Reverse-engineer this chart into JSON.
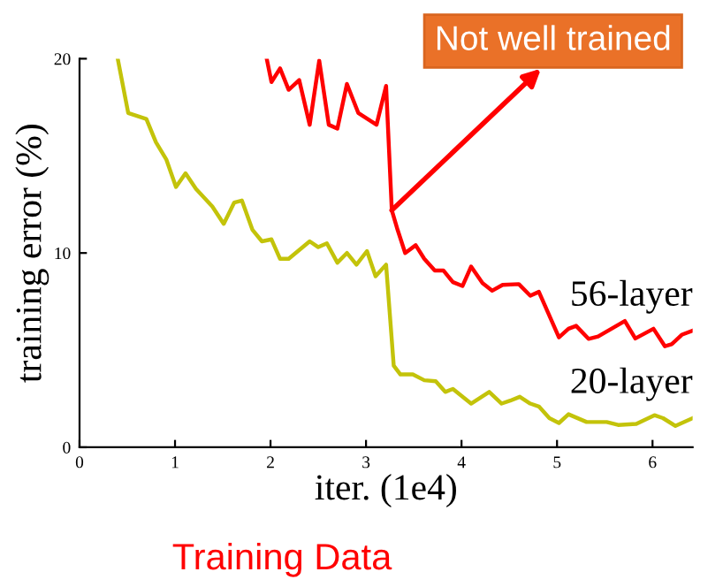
{
  "chart_data": {
    "type": "line",
    "title": "Training Data",
    "xlabel": "iter. (1e4)",
    "ylabel": "training error (%)",
    "xlim": [
      0,
      6.42
    ],
    "ylim": [
      0,
      20
    ],
    "xticks": [
      0,
      1,
      2,
      3,
      4,
      5,
      6
    ],
    "yticks": [
      0,
      10,
      20
    ],
    "grid": false,
    "legend": false,
    "annotations": [
      {
        "text": "Not well trained",
        "x": 3.27,
        "y": 12.2
      }
    ],
    "series": [
      {
        "name": "56-layer",
        "color": "#ff0000",
        "x": [
          1.96,
          2.01,
          2.1,
          2.19,
          2.3,
          2.41,
          2.51,
          2.61,
          2.7,
          2.8,
          2.92,
          3.11,
          3.21,
          3.27,
          3.33,
          3.41,
          3.52,
          3.61,
          3.72,
          3.81,
          3.91,
          4.01,
          4.1,
          4.22,
          4.32,
          4.43,
          4.6,
          4.72,
          4.81,
          5.02,
          5.12,
          5.2,
          5.33,
          5.43,
          5.71,
          5.82,
          6.01,
          6.13,
          6.2,
          6.31,
          6.42
        ],
        "values": [
          20,
          18.8,
          19.5,
          18.4,
          18.9,
          16.6,
          19.9,
          16.6,
          16.4,
          18.7,
          17.2,
          16.6,
          18.6,
          12.2,
          11.2,
          10.0,
          10.4,
          9.7,
          9.1,
          9.1,
          8.5,
          8.3,
          9.3,
          8.45,
          8.06,
          8.36,
          8.4,
          7.8,
          8.0,
          5.66,
          6.1,
          6.25,
          5.58,
          5.7,
          6.5,
          5.6,
          6.1,
          5.2,
          5.3,
          5.8,
          6.0
        ]
      },
      {
        "name": "20-layer",
        "color": "#c3c30a",
        "x": [
          0.4,
          0.51,
          0.7,
          0.8,
          0.91,
          1.01,
          1.11,
          1.22,
          1.39,
          1.51,
          1.62,
          1.7,
          1.81,
          1.91,
          2.01,
          2.1,
          2.19,
          2.41,
          2.5,
          2.59,
          2.7,
          2.8,
          2.9,
          3.01,
          3.1,
          3.21,
          3.29,
          3.36,
          3.49,
          3.61,
          3.73,
          3.83,
          3.91,
          4.1,
          4.29,
          4.42,
          4.51,
          4.61,
          4.72,
          4.81,
          4.92,
          5.02,
          5.12,
          5.31,
          5.52,
          5.64,
          5.83,
          6.02,
          6.11,
          6.24,
          6.42
        ],
        "values": [
          20,
          17.2,
          16.9,
          15.7,
          14.8,
          13.4,
          14.1,
          13.3,
          12.4,
          11.5,
          12.6,
          12.7,
          11.2,
          10.6,
          10.7,
          9.7,
          9.7,
          10.6,
          10.3,
          10.5,
          9.5,
          10.0,
          9.4,
          10.1,
          8.8,
          9.4,
          4.2,
          3.75,
          3.75,
          3.45,
          3.4,
          2.85,
          3.0,
          2.25,
          2.85,
          2.25,
          2.4,
          2.6,
          2.25,
          2.1,
          1.5,
          1.25,
          1.7,
          1.3,
          1.3,
          1.15,
          1.2,
          1.65,
          1.5,
          1.1,
          1.5
        ]
      }
    ]
  }
}
